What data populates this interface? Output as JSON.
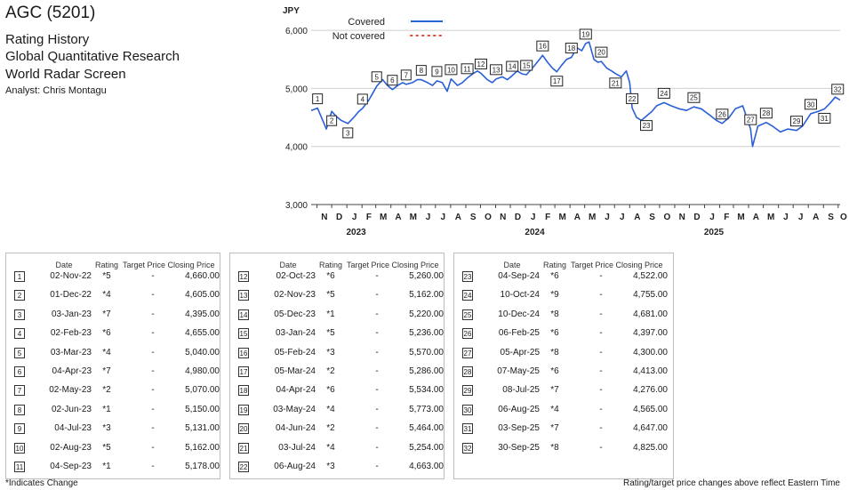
{
  "header": {
    "title": "AGC (5201)",
    "line1": "Rating History",
    "line2": "Global Quantitative Research",
    "line3": "World Radar Screen",
    "analyst": "Analyst: Chris Montagu"
  },
  "chart_data": {
    "type": "line",
    "ylabel": "JPY",
    "ylim": [
      3000,
      6400
    ],
    "yticks": [
      3000,
      4000,
      5000,
      6000
    ],
    "ytick_labels": [
      "3,000",
      "4,000",
      "5,000",
      "6,000"
    ],
    "xlim": [
      "2022-10-20",
      "2025-10-05"
    ],
    "month_labels": [
      "N",
      "D",
      "J",
      "F",
      "M",
      "A",
      "M",
      "J",
      "J",
      "A",
      "S",
      "O",
      "N",
      "D",
      "J",
      "F",
      "M",
      "A",
      "M",
      "J",
      "J",
      "A",
      "S",
      "O",
      "N",
      "D",
      "J",
      "F",
      "M",
      "A",
      "M",
      "J",
      "J",
      "A",
      "S",
      "O"
    ],
    "year_labels": [
      "2023",
      "2024",
      "2025"
    ],
    "legend": [
      {
        "name": "Covered",
        "color": "#2a5fd6",
        "style": "solid"
      },
      {
        "name": "Not covered",
        "color": "#e0473c",
        "style": "dotted"
      }
    ],
    "grid": "horizontal",
    "series": [
      {
        "name": "Covered",
        "color": "#2a5fd6",
        "x": [
          "2022-10-20",
          "2022-11-02",
          "2022-11-10",
          "2022-11-20",
          "2022-12-01",
          "2022-12-10",
          "2022-12-20",
          "2023-01-03",
          "2023-01-15",
          "2023-01-25",
          "2023-02-02",
          "2023-02-15",
          "2023-02-25",
          "2023-03-03",
          "2023-03-15",
          "2023-03-25",
          "2023-04-04",
          "2023-04-15",
          "2023-04-25",
          "2023-05-02",
          "2023-05-15",
          "2023-05-25",
          "2023-06-02",
          "2023-06-15",
          "2023-06-25",
          "2023-07-04",
          "2023-07-15",
          "2023-07-25",
          "2023-08-02",
          "2023-08-15",
          "2023-08-25",
          "2023-09-04",
          "2023-09-15",
          "2023-09-25",
          "2023-10-02",
          "2023-10-15",
          "2023-10-25",
          "2023-11-02",
          "2023-11-15",
          "2023-11-25",
          "2023-12-05",
          "2023-12-15",
          "2023-12-25",
          "2024-01-03",
          "2024-01-15",
          "2024-01-25",
          "2024-02-05",
          "2024-02-15",
          "2024-02-25",
          "2024-03-05",
          "2024-03-15",
          "2024-03-25",
          "2024-04-04",
          "2024-04-15",
          "2024-04-25",
          "2024-05-03",
          "2024-05-10",
          "2024-05-20",
          "2024-05-28",
          "2024-06-04",
          "2024-06-15",
          "2024-06-25",
          "2024-07-03",
          "2024-07-15",
          "2024-07-25",
          "2024-08-01",
          "2024-08-06",
          "2024-08-15",
          "2024-08-25",
          "2024-09-04",
          "2024-09-15",
          "2024-09-25",
          "2024-10-10",
          "2024-10-25",
          "2024-11-10",
          "2024-11-25",
          "2024-12-10",
          "2024-12-25",
          "2025-01-10",
          "2025-01-25",
          "2025-02-06",
          "2025-02-20",
          "2025-03-05",
          "2025-03-20",
          "2025-04-05",
          "2025-04-09",
          "2025-04-20",
          "2025-05-07",
          "2025-05-20",
          "2025-06-05",
          "2025-06-20",
          "2025-07-08",
          "2025-07-20",
          "2025-08-06",
          "2025-08-20",
          "2025-09-03",
          "2025-09-15",
          "2025-09-25",
          "2025-09-30",
          "2025-10-05"
        ],
        "y": [
          4620,
          4660,
          4500,
          4300,
          4605,
          4520,
          4450,
          4395,
          4500,
          4600,
          4655,
          4800,
          4950,
          5040,
          5150,
          5050,
          4980,
          5050,
          5100,
          5070,
          5100,
          5150,
          5150,
          5100,
          5050,
          5131,
          5100,
          4950,
          5162,
          5050,
          5100,
          5178,
          5250,
          5300,
          5260,
          5150,
          5100,
          5162,
          5200,
          5150,
          5220,
          5300,
          5250,
          5236,
          5350,
          5450,
          5570,
          5450,
          5350,
          5286,
          5400,
          5500,
          5534,
          5700,
          5650,
          5773,
          5800,
          5500,
          5450,
          5464,
          5350,
          5300,
          5254,
          5200,
          5300,
          5100,
          4663,
          4500,
          4450,
          4522,
          4600,
          4700,
          4755,
          4700,
          4650,
          4620,
          4681,
          4650,
          4550,
          4450,
          4397,
          4500,
          4650,
          4700,
          4300,
          4000,
          4350,
          4413,
          4350,
          4250,
          4300,
          4276,
          4350,
          4565,
          4600,
          4647,
          4750,
          4850,
          4825,
          4800
        ]
      }
    ],
    "annotations": [
      {
        "n": "1",
        "date": "2022-11-02",
        "value": 4660,
        "above": true
      },
      {
        "n": "2",
        "date": "2022-12-01",
        "value": 4605,
        "above": false
      },
      {
        "n": "3",
        "date": "2023-01-03",
        "value": 4395,
        "above": false
      },
      {
        "n": "4",
        "date": "2023-02-02",
        "value": 4655,
        "above": true
      },
      {
        "n": "5",
        "date": "2023-03-03",
        "value": 5040,
        "above": true
      },
      {
        "n": "6",
        "date": "2023-04-04",
        "value": 4980,
        "above": true
      },
      {
        "n": "7",
        "date": "2023-05-02",
        "value": 5070,
        "above": true
      },
      {
        "n": "8",
        "date": "2023-06-02",
        "value": 5150,
        "above": true
      },
      {
        "n": "9",
        "date": "2023-07-04",
        "value": 5131,
        "above": true
      },
      {
        "n": "10",
        "date": "2023-08-02",
        "value": 5162,
        "above": true
      },
      {
        "n": "11",
        "date": "2023-09-04",
        "value": 5178,
        "above": true
      },
      {
        "n": "12",
        "date": "2023-10-02",
        "value": 5260,
        "above": true
      },
      {
        "n": "13",
        "date": "2023-11-02",
        "value": 5162,
        "above": true
      },
      {
        "n": "14",
        "date": "2023-12-05",
        "value": 5220,
        "above": true
      },
      {
        "n": "15",
        "date": "2024-01-03",
        "value": 5236,
        "above": true
      },
      {
        "n": "16",
        "date": "2024-02-05",
        "value": 5570,
        "above": true
      },
      {
        "n": "17",
        "date": "2024-03-05",
        "value": 5286,
        "above": false
      },
      {
        "n": "18",
        "date": "2024-04-04",
        "value": 5534,
        "above": true
      },
      {
        "n": "19",
        "date": "2024-05-03",
        "value": 5773,
        "above": true
      },
      {
        "n": "20",
        "date": "2024-06-04",
        "value": 5464,
        "above": true
      },
      {
        "n": "21",
        "date": "2024-07-03",
        "value": 5254,
        "above": false
      },
      {
        "n": "22",
        "date": "2024-08-06",
        "value": 4663,
        "above": true
      },
      {
        "n": "23",
        "date": "2024-09-04",
        "value": 4522,
        "above": false
      },
      {
        "n": "24",
        "date": "2024-10-10",
        "value": 4755,
        "above": true
      },
      {
        "n": "25",
        "date": "2024-12-10",
        "value": 4681,
        "above": true
      },
      {
        "n": "26",
        "date": "2025-02-06",
        "value": 4397,
        "above": true
      },
      {
        "n": "27",
        "date": "2025-04-05",
        "value": 4300,
        "above": true
      },
      {
        "n": "28",
        "date": "2025-05-07",
        "value": 4413,
        "above": true
      },
      {
        "n": "29",
        "date": "2025-07-08",
        "value": 4276,
        "above": true
      },
      {
        "n": "30",
        "date": "2025-08-06",
        "value": 4565,
        "above": true
      },
      {
        "n": "31",
        "date": "2025-09-03",
        "value": 4647,
        "above": false
      },
      {
        "n": "32",
        "date": "2025-09-30",
        "value": 4825,
        "above": true
      }
    ]
  },
  "table": {
    "headers": {
      "date": "Date",
      "rating": "Rating",
      "target": "Target Price",
      "close": "Closing Price"
    },
    "rows": [
      {
        "n": "1",
        "date": "02-Nov-22",
        "rating": "*5",
        "target": "-",
        "close": "4,660.00"
      },
      {
        "n": "2",
        "date": "01-Dec-22",
        "rating": "*4",
        "target": "-",
        "close": "4,605.00"
      },
      {
        "n": "3",
        "date": "03-Jan-23",
        "rating": "*7",
        "target": "-",
        "close": "4,395.00"
      },
      {
        "n": "4",
        "date": "02-Feb-23",
        "rating": "*6",
        "target": "-",
        "close": "4,655.00"
      },
      {
        "n": "5",
        "date": "03-Mar-23",
        "rating": "*4",
        "target": "-",
        "close": "5,040.00"
      },
      {
        "n": "6",
        "date": "04-Apr-23",
        "rating": "*7",
        "target": "-",
        "close": "4,980.00"
      },
      {
        "n": "7",
        "date": "02-May-23",
        "rating": "*2",
        "target": "-",
        "close": "5,070.00"
      },
      {
        "n": "8",
        "date": "02-Jun-23",
        "rating": "*1",
        "target": "-",
        "close": "5,150.00"
      },
      {
        "n": "9",
        "date": "04-Jul-23",
        "rating": "*3",
        "target": "-",
        "close": "5,131.00"
      },
      {
        "n": "10",
        "date": "02-Aug-23",
        "rating": "*5",
        "target": "-",
        "close": "5,162.00"
      },
      {
        "n": "11",
        "date": "04-Sep-23",
        "rating": "*1",
        "target": "-",
        "close": "5,178.00"
      },
      {
        "n": "12",
        "date": "02-Oct-23",
        "rating": "*6",
        "target": "-",
        "close": "5,260.00"
      },
      {
        "n": "13",
        "date": "02-Nov-23",
        "rating": "*5",
        "target": "-",
        "close": "5,162.00"
      },
      {
        "n": "14",
        "date": "05-Dec-23",
        "rating": "*1",
        "target": "-",
        "close": "5,220.00"
      },
      {
        "n": "15",
        "date": "03-Jan-24",
        "rating": "*5",
        "target": "-",
        "close": "5,236.00"
      },
      {
        "n": "16",
        "date": "05-Feb-24",
        "rating": "*3",
        "target": "-",
        "close": "5,570.00"
      },
      {
        "n": "17",
        "date": "05-Mar-24",
        "rating": "*2",
        "target": "-",
        "close": "5,286.00"
      },
      {
        "n": "18",
        "date": "04-Apr-24",
        "rating": "*6",
        "target": "-",
        "close": "5,534.00"
      },
      {
        "n": "19",
        "date": "03-May-24",
        "rating": "*4",
        "target": "-",
        "close": "5,773.00"
      },
      {
        "n": "20",
        "date": "04-Jun-24",
        "rating": "*2",
        "target": "-",
        "close": "5,464.00"
      },
      {
        "n": "21",
        "date": "03-Jul-24",
        "rating": "*4",
        "target": "-",
        "close": "5,254.00"
      },
      {
        "n": "22",
        "date": "06-Aug-24",
        "rating": "*3",
        "target": "-",
        "close": "4,663.00"
      },
      {
        "n": "23",
        "date": "04-Sep-24",
        "rating": "*6",
        "target": "-",
        "close": "4,522.00"
      },
      {
        "n": "24",
        "date": "10-Oct-24",
        "rating": "*9",
        "target": "-",
        "close": "4,755.00"
      },
      {
        "n": "25",
        "date": "10-Dec-24",
        "rating": "*8",
        "target": "-",
        "close": "4,681.00"
      },
      {
        "n": "26",
        "date": "06-Feb-25",
        "rating": "*6",
        "target": "-",
        "close": "4,397.00"
      },
      {
        "n": "27",
        "date": "05-Apr-25",
        "rating": "*8",
        "target": "-",
        "close": "4,300.00"
      },
      {
        "n": "28",
        "date": "07-May-25",
        "rating": "*6",
        "target": "-",
        "close": "4,413.00"
      },
      {
        "n": "29",
        "date": "08-Jul-25",
        "rating": "*7",
        "target": "-",
        "close": "4,276.00"
      },
      {
        "n": "30",
        "date": "06-Aug-25",
        "rating": "*4",
        "target": "-",
        "close": "4,565.00"
      },
      {
        "n": "31",
        "date": "03-Sep-25",
        "rating": "*7",
        "target": "-",
        "close": "4,647.00"
      },
      {
        "n": "32",
        "date": "30-Sep-25",
        "rating": "*8",
        "target": "-",
        "close": "4,825.00"
      }
    ]
  },
  "footer": {
    "left": "*Indicates Change",
    "right": "Rating/target price changes above reflect Eastern Time"
  }
}
